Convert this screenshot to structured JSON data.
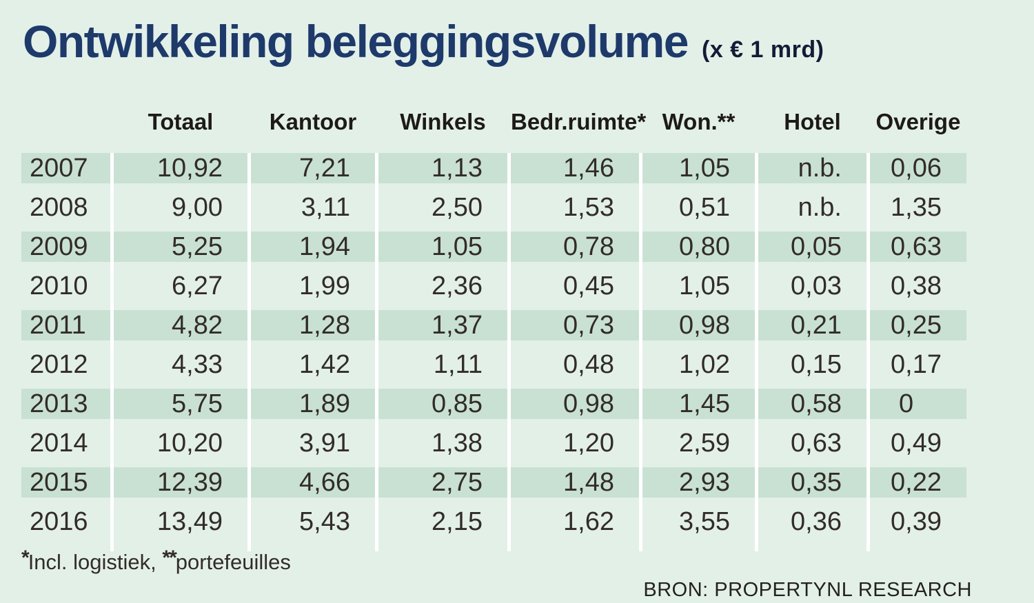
{
  "title": {
    "main": "Ontwikkeling beleggingsvolume",
    "unit": "(x € 1 mrd)"
  },
  "table": {
    "columns": [
      "Totaal",
      "Kantoor",
      "Winkels",
      "Bedr.ruimte*",
      "Won.**",
      "Hotel",
      "Overige"
    ],
    "rows": [
      {
        "year": "2007",
        "values": [
          "10,92",
          "7,21",
          "1,13",
          "1,46",
          "1,05",
          "n.b.",
          "0,06"
        ]
      },
      {
        "year": "2008",
        "values": [
          "9,00",
          "3,11",
          "2,50",
          "1,53",
          "0,51",
          "n.b.",
          "1,35"
        ]
      },
      {
        "year": "2009",
        "values": [
          "5,25",
          "1,94",
          "1,05",
          "0,78",
          "0,80",
          "0,05",
          "0,63"
        ]
      },
      {
        "year": "2010",
        "values": [
          "6,27",
          "1,99",
          "2,36",
          "0,45",
          "1,05",
          "0,03",
          "0,38"
        ]
      },
      {
        "year": "2011",
        "values": [
          "4,82",
          "1,28",
          "1,37",
          "0,73",
          "0,98",
          "0,21",
          "0,25"
        ]
      },
      {
        "year": "2012",
        "values": [
          "4,33",
          "1,42",
          "1,11",
          "0,48",
          "1,02",
          "0,15",
          "0,17"
        ]
      },
      {
        "year": "2013",
        "values": [
          "5,75",
          "1,89",
          "0,85",
          "0,98",
          "1,45",
          "0,58",
          "0"
        ]
      },
      {
        "year": "2014",
        "values": [
          "10,20",
          "3,91",
          "1,38",
          "1,20",
          "2,59",
          "0,63",
          "0,49"
        ]
      },
      {
        "year": "2015",
        "values": [
          "12,39",
          "4,66",
          "2,75",
          "1,48",
          "2,93",
          "0,35",
          "0,22"
        ]
      },
      {
        "year": "2016",
        "values": [
          "13,49",
          "5,43",
          "2,15",
          "1,62",
          "3,55",
          "0,36",
          "0,39"
        ]
      }
    ]
  },
  "footnote": {
    "star1": "*",
    "text1": "Incl. logistiek, ",
    "star2": "**",
    "text2": "portefeuilles"
  },
  "source": "BRON: PROPERTYNL RESEARCH",
  "colors": {
    "background": "#e3f0e8",
    "row_band": "#c9e1d3",
    "separator": "#ffffff",
    "title": "#1e3a6b",
    "text": "#322c27"
  },
  "chart_data": {
    "type": "table",
    "title": "Ontwikkeling beleggingsvolume (x € 1 mrd)",
    "categories": [
      "2007",
      "2008",
      "2009",
      "2010",
      "2011",
      "2012",
      "2013",
      "2014",
      "2015",
      "2016"
    ],
    "series": [
      {
        "name": "Totaal",
        "values": [
          10.92,
          9.0,
          5.25,
          6.27,
          4.82,
          4.33,
          5.75,
          10.2,
          12.39,
          13.49
        ]
      },
      {
        "name": "Kantoor",
        "values": [
          7.21,
          3.11,
          1.94,
          1.99,
          1.28,
          1.42,
          1.89,
          3.91,
          4.66,
          5.43
        ]
      },
      {
        "name": "Winkels",
        "values": [
          1.13,
          2.5,
          1.05,
          2.36,
          1.37,
          1.11,
          0.85,
          1.38,
          2.75,
          2.15
        ]
      },
      {
        "name": "Bedr.ruimte*",
        "values": [
          1.46,
          1.53,
          0.78,
          0.45,
          0.73,
          0.48,
          0.98,
          1.2,
          1.48,
          1.62
        ]
      },
      {
        "name": "Won.**",
        "values": [
          1.05,
          0.51,
          0.8,
          1.05,
          0.98,
          1.02,
          1.45,
          2.59,
          2.93,
          3.55
        ]
      },
      {
        "name": "Hotel",
        "values": [
          null,
          null,
          0.05,
          0.03,
          0.21,
          0.15,
          0.58,
          0.63,
          0.35,
          0.36
        ]
      },
      {
        "name": "Overige",
        "values": [
          0.06,
          1.35,
          0.63,
          0.38,
          0.25,
          0.17,
          0,
          0.49,
          0.22,
          0.39
        ]
      }
    ],
    "notes": "Hotel values for 2007 and 2008 shown as n.b. (not available); * Incl. logistiek; ** portefeuilles",
    "unit": "x € 1 mrd"
  }
}
